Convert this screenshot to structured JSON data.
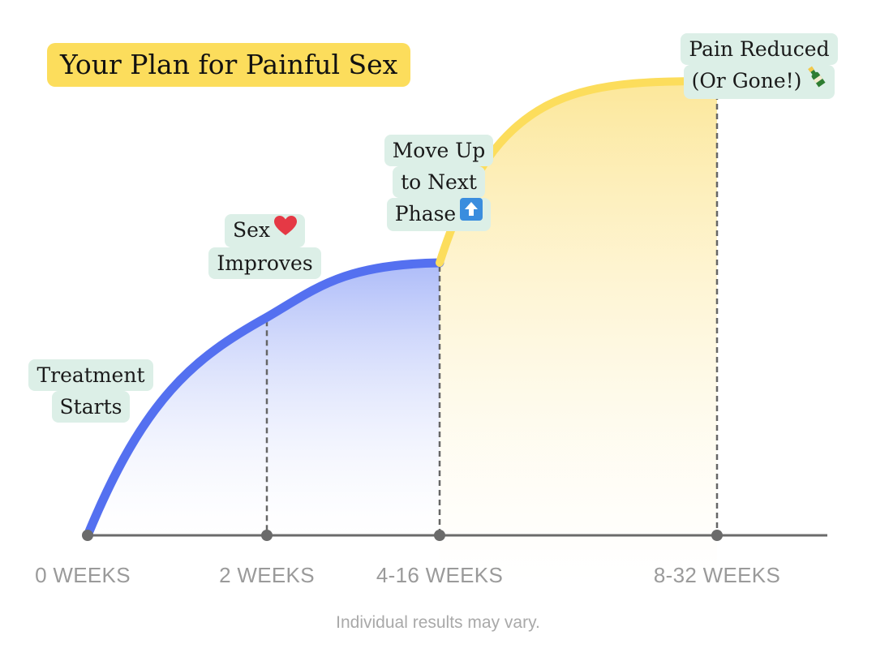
{
  "chart_data": {
    "type": "area",
    "title": "Your Plan for Painful Sex",
    "x_tick_labels": [
      "0 WEEKS",
      "2 WEEKS",
      "4-16 WEEKS",
      "8-32 WEEKS"
    ],
    "series": [
      {
        "color": "#5470F0",
        "fill_gradient": [
          "#A9B8F8",
          "#FFFFFF"
        ],
        "points": [
          {
            "x": 0,
            "y": 0
          },
          {
            "x": 1,
            "y": 0.48
          },
          {
            "x": 2,
            "y": 0.6
          }
        ]
      },
      {
        "color": "#FCDD5C",
        "fill_gradient": [
          "#FCE79A",
          "#FFFFFF"
        ],
        "points": [
          {
            "x": 2,
            "y": 0.6
          },
          {
            "x": 3,
            "y": 1.0
          }
        ]
      }
    ],
    "annotations": [
      {
        "x": 0,
        "lines": [
          "Treatment",
          "Starts"
        ],
        "emoji": ""
      },
      {
        "x": 1,
        "lines": [
          "Sex",
          "Improves"
        ],
        "emoji": "heart"
      },
      {
        "x": 2,
        "lines": [
          "Move Up",
          "to Next",
          "Phase"
        ],
        "emoji": "up-arrow"
      },
      {
        "x": 3,
        "lines": [
          "Pain Reduced",
          "(Or Gone!)"
        ],
        "emoji": "champagne"
      }
    ],
    "footnote": "Individual results may vary.",
    "grid": false
  },
  "colors": {
    "title_bg": "#FCDD5C",
    "callout_bg": "#DCEFE7",
    "axis": "#6b6b6b",
    "tick_text": "#9a9a9a",
    "dash": "#666666"
  }
}
